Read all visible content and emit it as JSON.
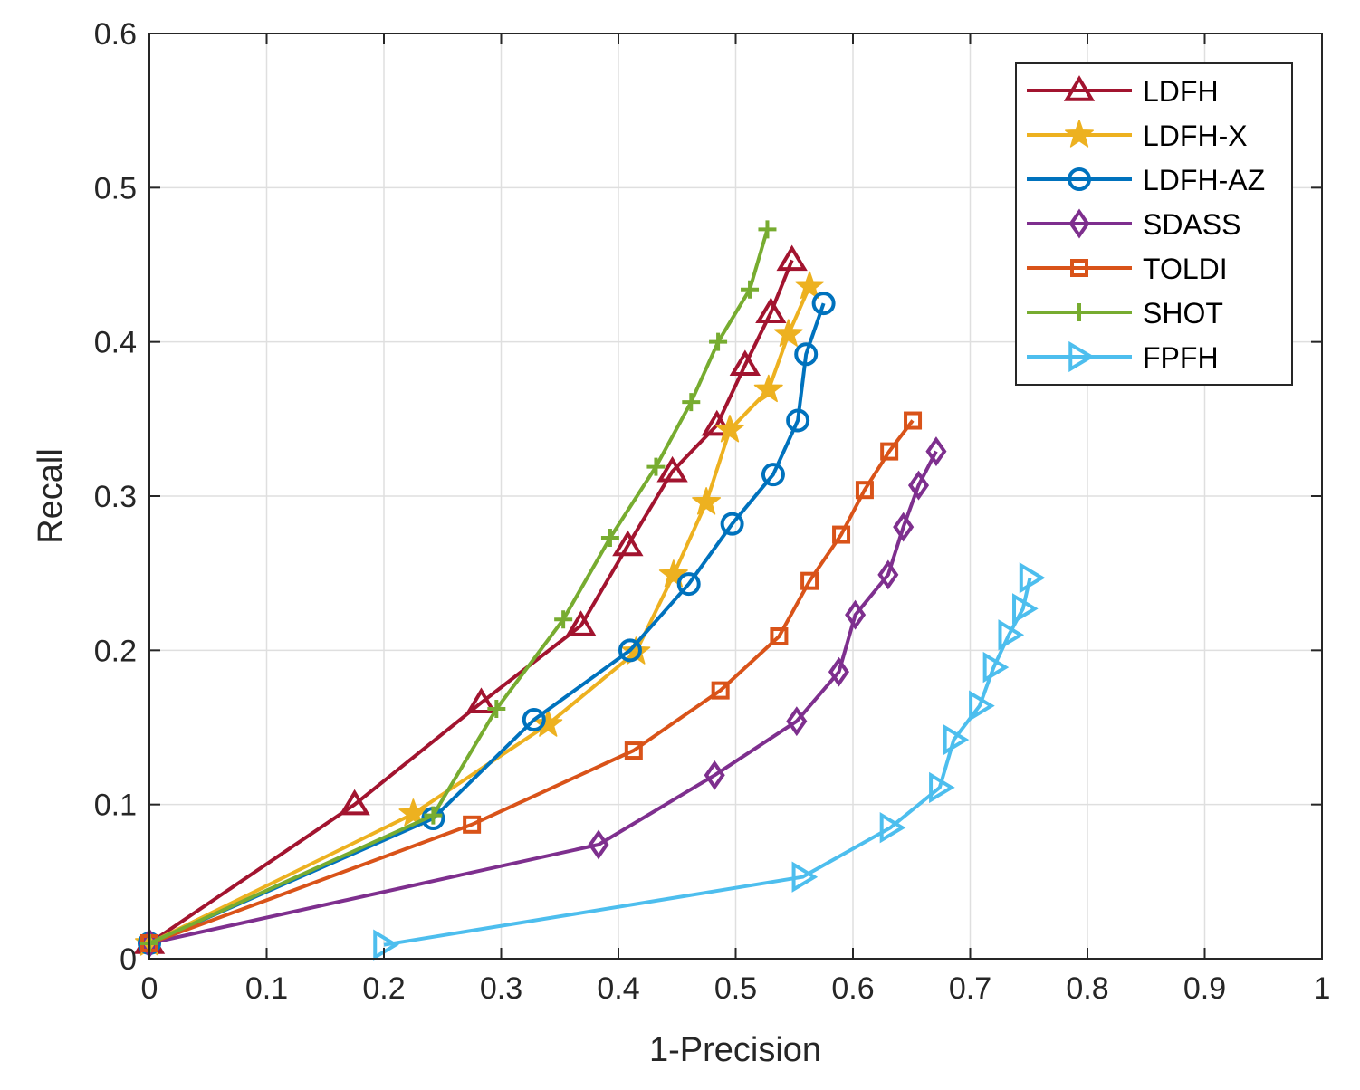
{
  "chart_data": {
    "type": "line",
    "xlabel": "1-Precision",
    "ylabel": "Recall",
    "xlim": [
      0,
      1
    ],
    "ylim": [
      0,
      0.6
    ],
    "xticks": [
      "0",
      "0.1",
      "0.2",
      "0.3",
      "0.4",
      "0.5",
      "0.6",
      "0.7",
      "0.8",
      "0.9",
      "1"
    ],
    "yticks": [
      "0",
      "0.1",
      "0.2",
      "0.3",
      "0.4",
      "0.5",
      "0.6"
    ],
    "grid": true,
    "legend_position": "top-right",
    "series": [
      {
        "name": "LDFH",
        "color": "#A2142F",
        "marker": "triangle",
        "points": [
          [
            0.0,
            0.01
          ],
          [
            0.175,
            0.1
          ],
          [
            0.283,
            0.166
          ],
          [
            0.368,
            0.216
          ],
          [
            0.408,
            0.268
          ],
          [
            0.446,
            0.316
          ],
          [
            0.484,
            0.346
          ],
          [
            0.508,
            0.385
          ],
          [
            0.53,
            0.419
          ],
          [
            0.548,
            0.453
          ]
        ]
      },
      {
        "name": "LDFH-X",
        "color": "#EDB120",
        "marker": "star",
        "points": [
          [
            0.0,
            0.01
          ],
          [
            0.225,
            0.094
          ],
          [
            0.34,
            0.152
          ],
          [
            0.415,
            0.199
          ],
          [
            0.447,
            0.249
          ],
          [
            0.475,
            0.296
          ],
          [
            0.495,
            0.343
          ],
          [
            0.528,
            0.369
          ],
          [
            0.545,
            0.405
          ],
          [
            0.563,
            0.436
          ]
        ]
      },
      {
        "name": "LDFH-AZ",
        "color": "#0072BD",
        "marker": "circle",
        "points": [
          [
            0.0,
            0.01
          ],
          [
            0.242,
            0.091
          ],
          [
            0.328,
            0.155
          ],
          [
            0.41,
            0.2
          ],
          [
            0.46,
            0.243
          ],
          [
            0.497,
            0.282
          ],
          [
            0.532,
            0.314
          ],
          [
            0.553,
            0.349
          ],
          [
            0.56,
            0.392
          ],
          [
            0.575,
            0.425
          ]
        ]
      },
      {
        "name": "SDASS",
        "color": "#7E2F8E",
        "marker": "diamond",
        "points": [
          [
            0.0,
            0.01
          ],
          [
            0.383,
            0.074
          ],
          [
            0.482,
            0.119
          ],
          [
            0.552,
            0.154
          ],
          [
            0.588,
            0.186
          ],
          [
            0.602,
            0.223
          ],
          [
            0.63,
            0.249
          ],
          [
            0.643,
            0.28
          ],
          [
            0.656,
            0.307
          ],
          [
            0.671,
            0.329
          ]
        ]
      },
      {
        "name": "TOLDI",
        "color": "#D95319",
        "marker": "square",
        "points": [
          [
            0.0,
            0.01
          ],
          [
            0.275,
            0.087
          ],
          [
            0.413,
            0.135
          ],
          [
            0.487,
            0.174
          ],
          [
            0.537,
            0.209
          ],
          [
            0.563,
            0.245
          ],
          [
            0.59,
            0.275
          ],
          [
            0.61,
            0.304
          ],
          [
            0.631,
            0.329
          ],
          [
            0.651,
            0.349
          ]
        ]
      },
      {
        "name": "SHOT",
        "color": "#77AC30",
        "marker": "plus",
        "points": [
          [
            0.0,
            0.01
          ],
          [
            0.242,
            0.093
          ],
          [
            0.296,
            0.162
          ],
          [
            0.353,
            0.22
          ],
          [
            0.393,
            0.273
          ],
          [
            0.432,
            0.319
          ],
          [
            0.462,
            0.361
          ],
          [
            0.485,
            0.4
          ],
          [
            0.512,
            0.434
          ],
          [
            0.527,
            0.473
          ]
        ]
      },
      {
        "name": "FPFH",
        "color": "#4DBEEE",
        "marker": "triangle-right",
        "points": [
          [
            0.2,
            0.009
          ],
          [
            0.557,
            0.053
          ],
          [
            0.632,
            0.085
          ],
          [
            0.674,
            0.111
          ],
          [
            0.686,
            0.142
          ],
          [
            0.708,
            0.164
          ],
          [
            0.72,
            0.189
          ],
          [
            0.733,
            0.21
          ],
          [
            0.745,
            0.227
          ],
          [
            0.751,
            0.247
          ]
        ]
      }
    ]
  }
}
